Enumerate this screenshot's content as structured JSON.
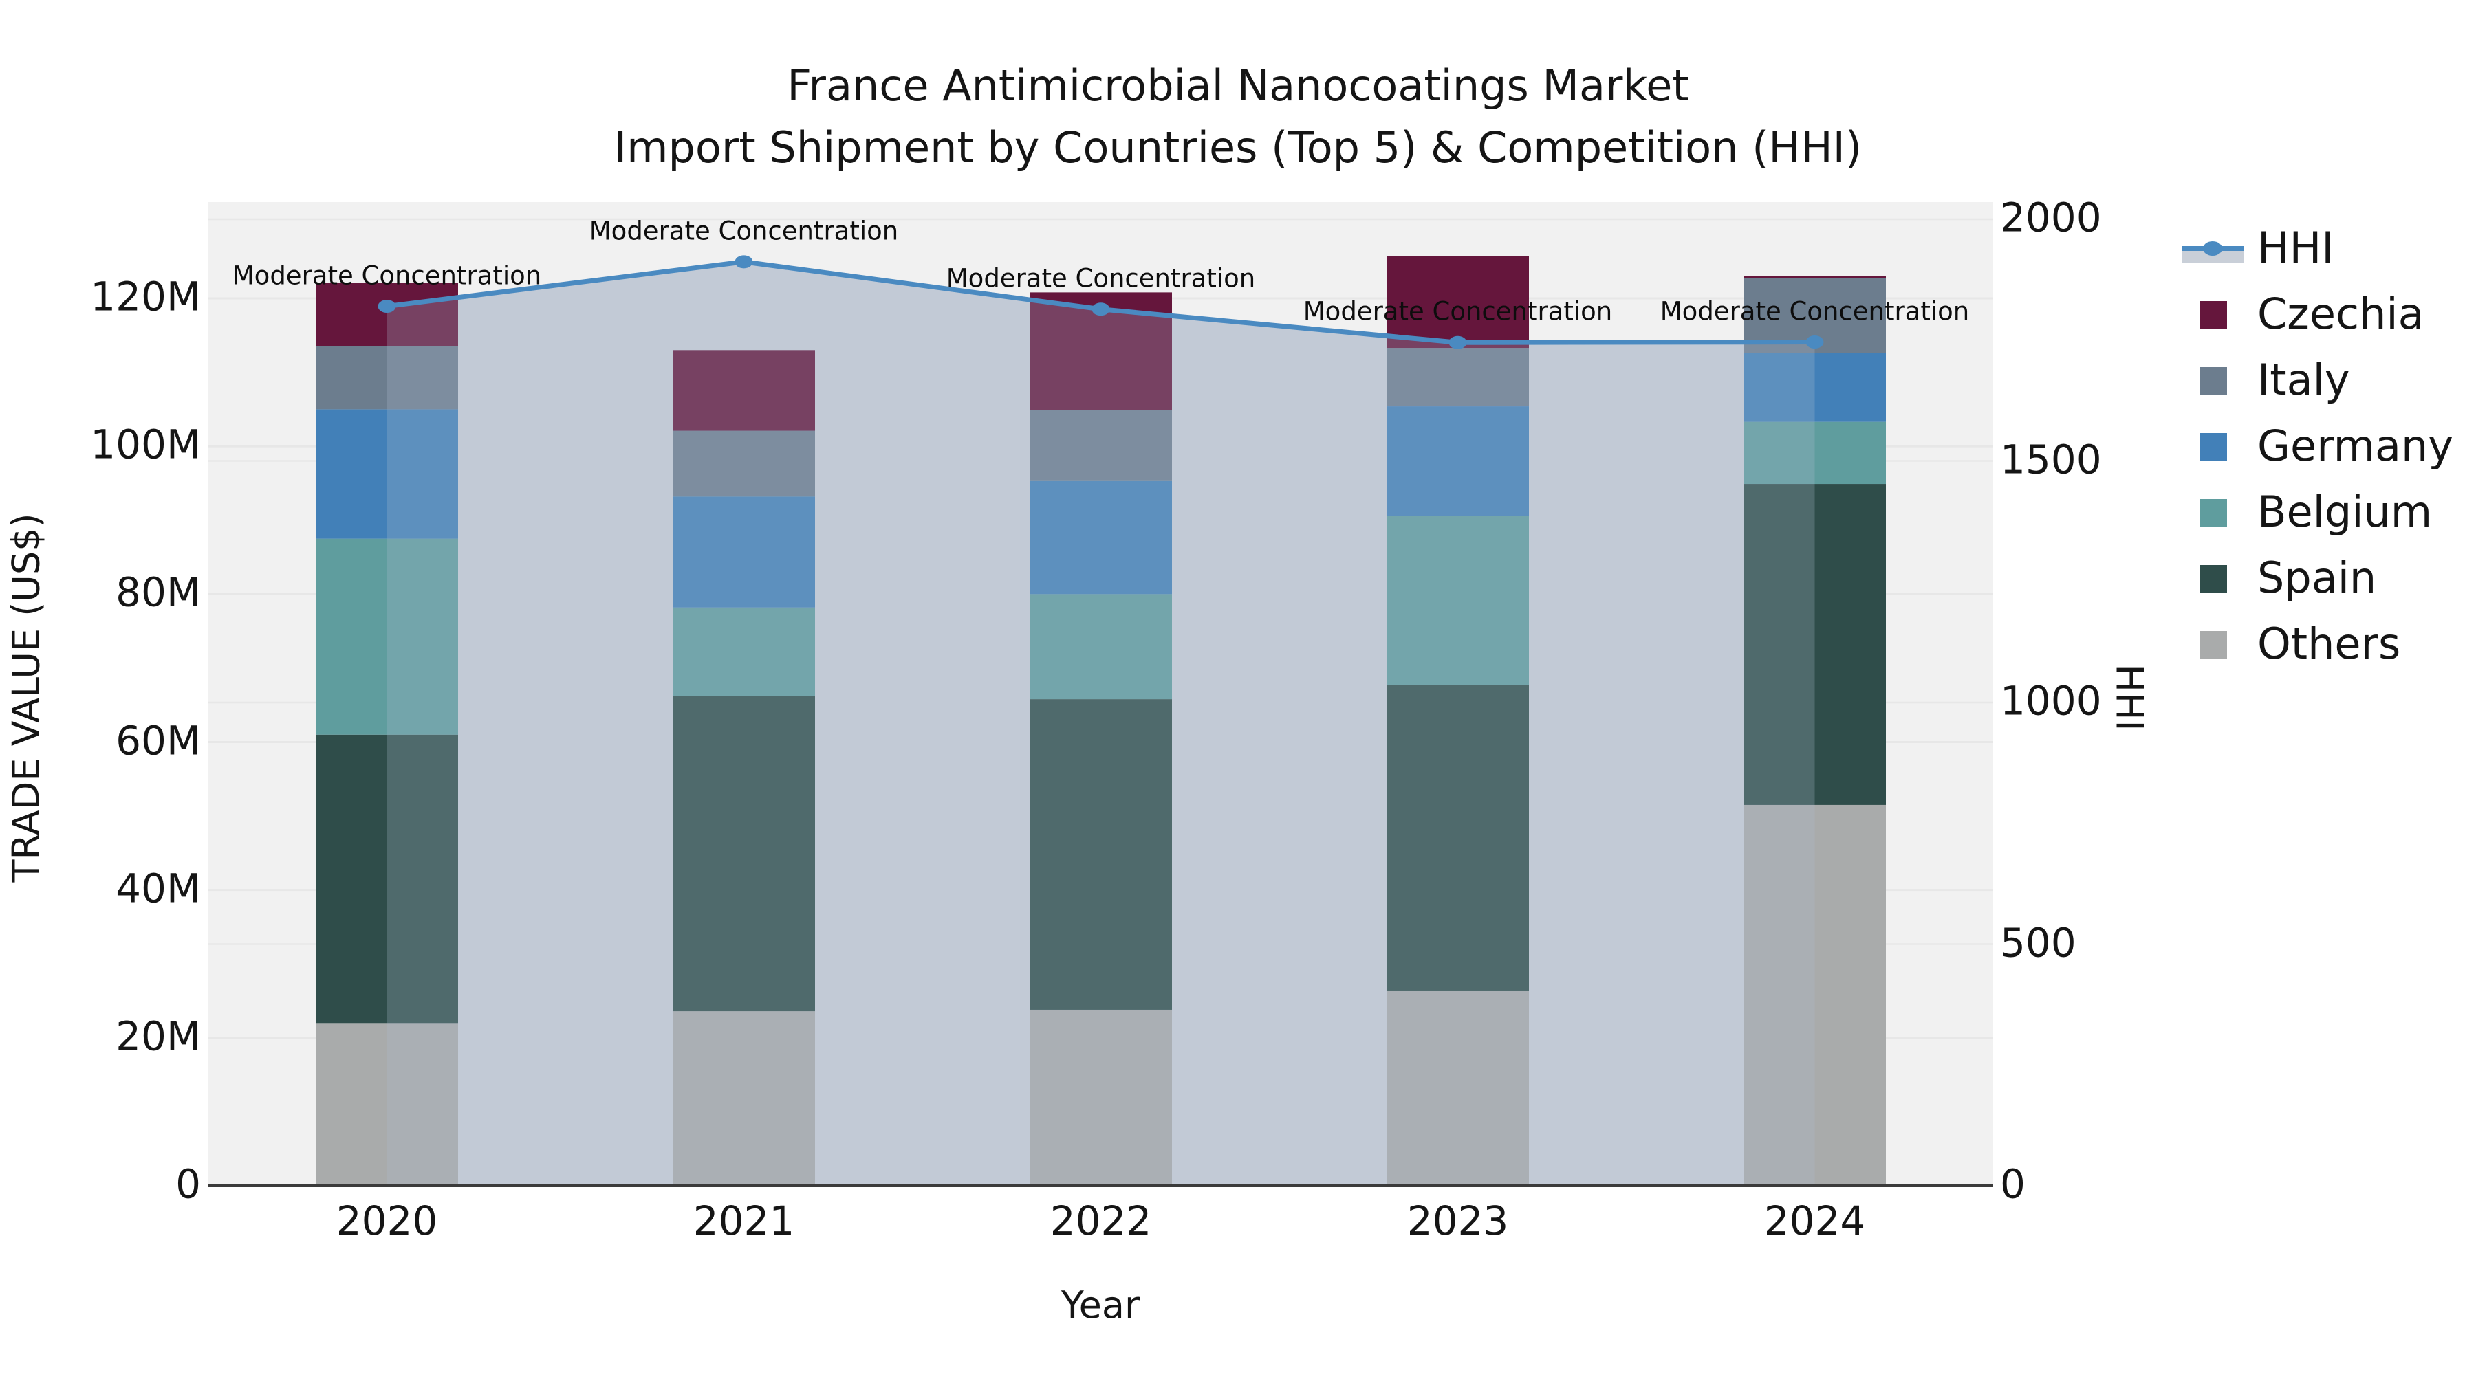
{
  "title": {
    "line1": "France Antimicrobial Nanocoatings Market",
    "line2": "Import Shipment by Countries (Top 5) & Competition (HHI)"
  },
  "axes": {
    "left": {
      "label": "TRADE VALUE (US$)",
      "ticks": [
        "0",
        "20M",
        "40M",
        "60M",
        "80M",
        "100M",
        "120M"
      ],
      "tick_values_millions": [
        0,
        20,
        40,
        60,
        80,
        100,
        120
      ]
    },
    "right": {
      "label": "HHI",
      "ticks": [
        "0",
        "500",
        "1000",
        "1500",
        "2000"
      ],
      "tick_values": [
        0,
        500,
        1000,
        1500,
        2000
      ],
      "max": 2000
    },
    "x": {
      "label": "Year",
      "ticks": [
        "2020",
        "2021",
        "2022",
        "2023",
        "2024"
      ]
    }
  },
  "annotation_text": "Moderate Concentration",
  "legend": {
    "entries": [
      {
        "label": "HHI",
        "type": "line",
        "color": "#4A8AC1"
      },
      {
        "label": "Czechia",
        "type": "patch",
        "color": "#65163C"
      },
      {
        "label": "Italy",
        "type": "patch",
        "color": "#6C7D8E"
      },
      {
        "label": "Germany",
        "type": "patch",
        "color": "#4280B8"
      },
      {
        "label": "Belgium",
        "type": "patch",
        "color": "#5F9D9E"
      },
      {
        "label": "Spain",
        "type": "patch",
        "color": "#2F4D4A"
      },
      {
        "label": "Others",
        "type": "patch",
        "color": "#A9ABAB"
      }
    ]
  },
  "colors": {
    "plot_background": "#F1F1F1",
    "gridline": "#E7E7E7",
    "area_fill": "#C9CFD8",
    "area_overlay": "#ADBDD1",
    "area_overlay_alpha": 0.26,
    "hhi_line": "#4A8AC1",
    "axis_spine": "#3B3B3B",
    "text": "#151515"
  },
  "chart_data": {
    "type": "combo: stacked-bar (left axis) + line with area (right axis)",
    "title": "France Antimicrobial Nanocoatings Market — Import Shipment by Countries (Top 5) & Competition (HHI)",
    "categories": [
      "2020",
      "2021",
      "2022",
      "2023",
      "2024"
    ],
    "xlabel": "Year",
    "ylabel_left": "TRADE VALUE (US$)",
    "ylabel_right": "HHI",
    "ylim_left_millions": [
      0,
      133
    ],
    "ylim_right": [
      0,
      2000
    ],
    "grid": true,
    "legend_position": "right-outside",
    "bar_unit": "US$ millions (estimated from axis)",
    "stack_order_bottom_to_top": [
      "Others",
      "Spain",
      "Belgium",
      "Germany",
      "Italy",
      "Czechia"
    ],
    "series": [
      {
        "name": "Others",
        "color": "#A9ABAB",
        "values": [
          22.0,
          23.6,
          23.8,
          26.4,
          51.5
        ]
      },
      {
        "name": "Spain",
        "color": "#2F4D4A",
        "values": [
          39.0,
          42.6,
          42.0,
          41.3,
          43.4
        ]
      },
      {
        "name": "Belgium",
        "color": "#5F9D9E",
        "values": [
          26.5,
          12.0,
          14.2,
          22.9,
          8.4
        ]
      },
      {
        "name": "Germany",
        "color": "#4280B8",
        "values": [
          17.5,
          15.0,
          15.3,
          14.8,
          9.3
        ]
      },
      {
        "name": "Italy",
        "color": "#6C7D8E",
        "values": [
          8.5,
          8.9,
          9.6,
          7.9,
          10.1
        ]
      },
      {
        "name": "Czechia",
        "color": "#65163C",
        "values": [
          8.6,
          10.9,
          15.9,
          12.4,
          0.3
        ]
      }
    ],
    "bar_totals_millions": [
      122.1,
      113.0,
      120.8,
      125.7,
      123.0
    ],
    "line_series": {
      "name": "HHI",
      "axis": "right",
      "color": "#4A8AC1",
      "area_fill": true,
      "values": [
        1820,
        1912,
        1814,
        1745,
        1746
      ]
    },
    "point_annotations": [
      "Moderate Concentration",
      "Moderate Concentration",
      "Moderate Concentration",
      "Moderate Concentration",
      "Moderate Concentration"
    ]
  }
}
